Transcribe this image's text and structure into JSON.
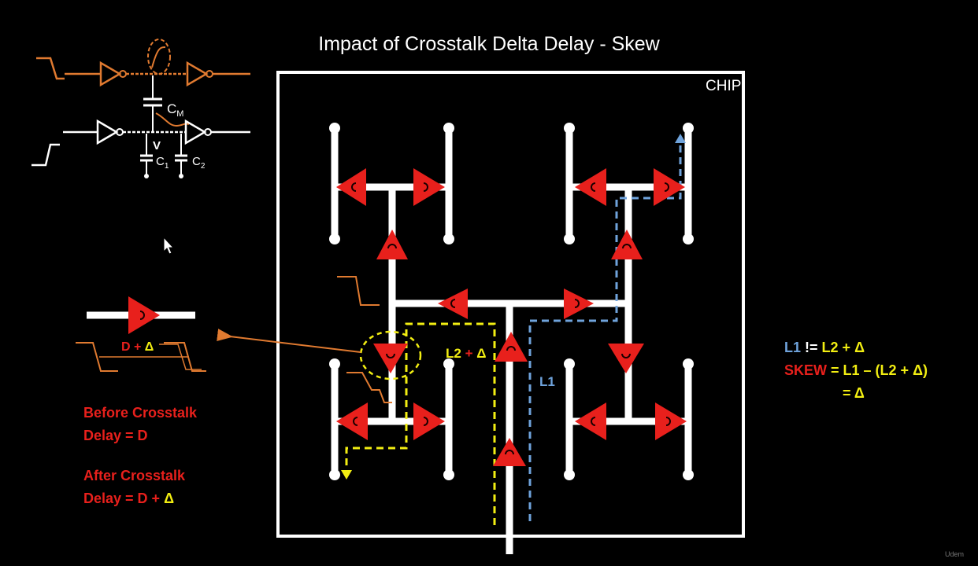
{
  "slide": {
    "title": "Impact of Crosstalk Delta Delay - Skew",
    "chip_label": "CHIP"
  },
  "circuit": {
    "cm_label": "C",
    "cm_sub": "M",
    "v_label": "V",
    "c1_label": "C",
    "c1_sub": "1",
    "c2_label": "C",
    "c2_sub": "2"
  },
  "buffer_inset": {
    "delay_label_prefix": "D + ",
    "delta": "Δ"
  },
  "notes": {
    "before_line1": "Before Crosstalk",
    "before_line2": "Delay = D",
    "after_line1": "After Crosstalk",
    "after_line2_prefix": "Delay = D + ",
    "after_line2_delta": "Δ"
  },
  "paths": {
    "l2_label": "L2",
    "l2_plus": " + ",
    "l2_delta": "Δ",
    "l1_label": "L1"
  },
  "equations": {
    "line1_left": "L1",
    "line1_op": " != ",
    "line1_right": "L2 + ",
    "line1_delta": "Δ",
    "line2_left": "SKEW",
    "line2_mid": "  = L1 – (",
    "line2_right": "L2 + ",
    "line2_delta": "Δ",
    "line2_close": ")",
    "line3_eq": "= ",
    "line3_delta": "Δ"
  },
  "watermark": "Udem",
  "colors": {
    "background": "#000000",
    "wire": "#ffffff",
    "buffer": "#e8201c",
    "net": "#e07a30",
    "path_l1": "#6fa3dc",
    "path_l2": "#f2ee12",
    "text_red": "#e8201c"
  }
}
